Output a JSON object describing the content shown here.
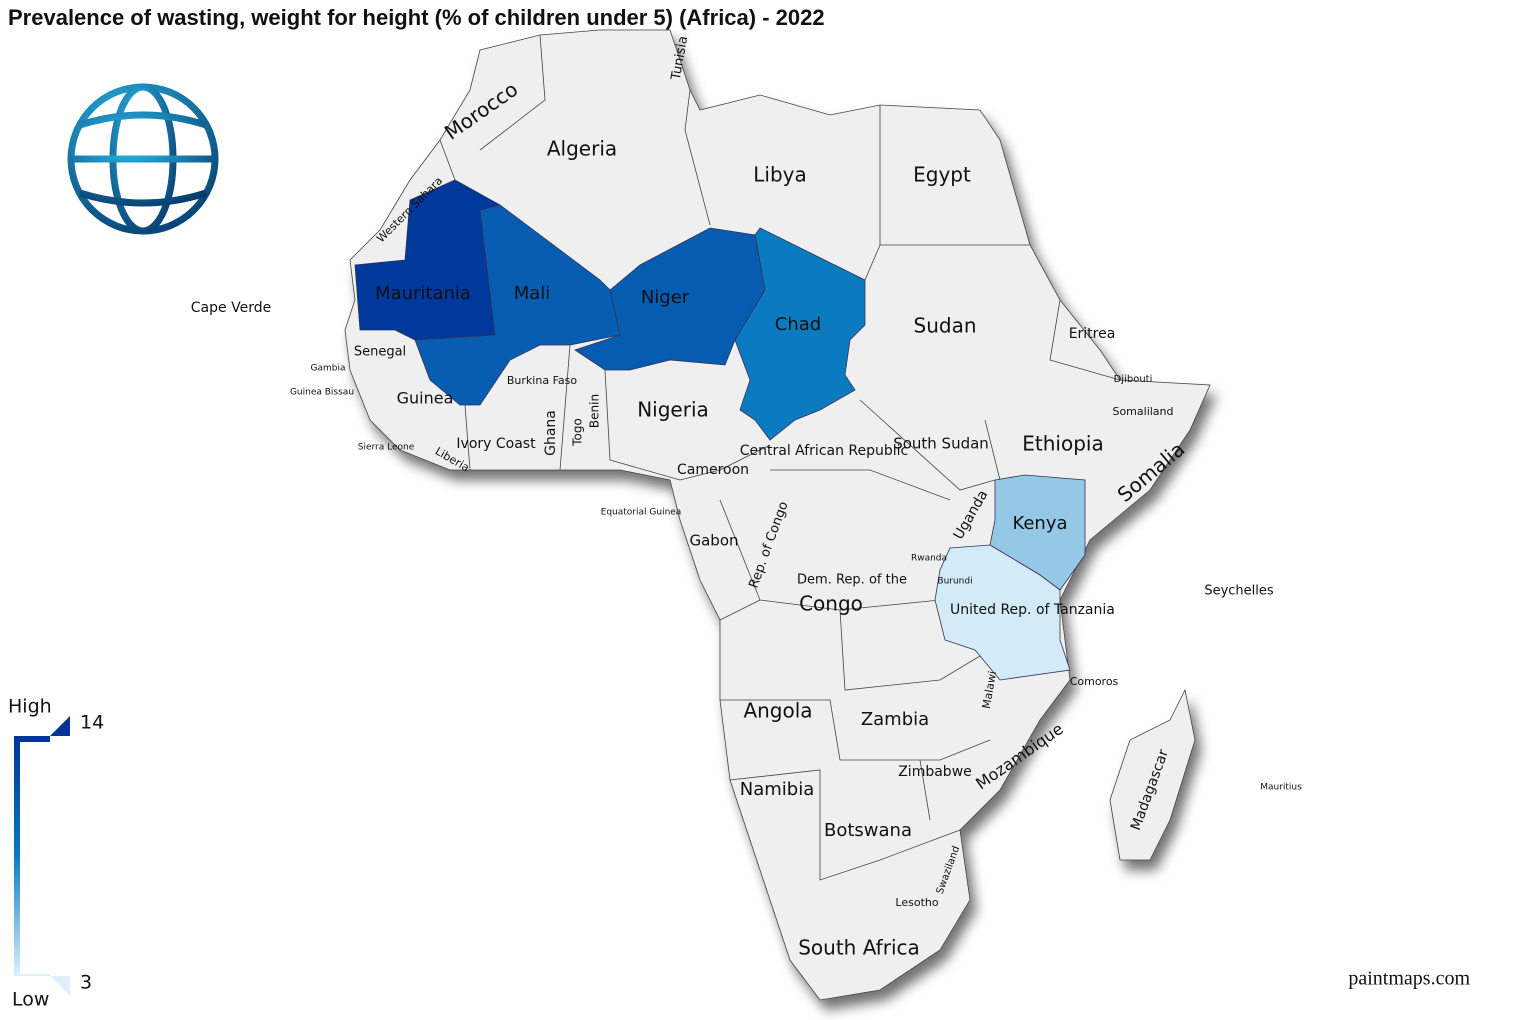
{
  "title": "Prevalence of wasting, weight for height (% of children under 5) (Africa) - 2022",
  "legend": {
    "high": "High",
    "low": "Low",
    "max": 14,
    "min": 3,
    "colors": [
      "#dff0fb",
      "#0a7cc2",
      "#003399"
    ]
  },
  "countries": [
    {
      "name": "Mauritania",
      "value": 13.6
    },
    {
      "name": "Mali",
      "value": 10.8
    },
    {
      "name": "Niger",
      "value": 10.9
    },
    {
      "name": "Chad",
      "value": 8.6
    },
    {
      "name": "Kenya",
      "value": 4.9
    },
    {
      "name": "United Rep. of Tanzania",
      "value": 3.3
    }
  ],
  "labels": [
    "Morocco",
    "Algeria",
    "Tunisia",
    "Libya",
    "Egypt",
    "Western Sahara",
    "Cape Verde",
    "Senegal",
    "Gambia",
    "Guinea Bissau",
    "Guinea",
    "Sierra Leone",
    "Liberia",
    "Ivory Coast",
    "Burkina Faso",
    "Ghana",
    "Togo",
    "Benin",
    "Nigeria",
    "Sudan",
    "Eritrea",
    "Djibouti",
    "Somaliland",
    "Ethiopia",
    "Somalia",
    "South Sudan",
    "Central African Republic",
    "Cameroon",
    "Equatorial Guinea",
    "Gabon",
    "Rep. of Congo",
    "Dem. Rep. of the",
    "Congo",
    "Uganda",
    "Rwanda",
    "Burundi",
    "Seychelles",
    "Comoros",
    "Malawi",
    "Angola",
    "Zambia",
    "Mozambique",
    "Madagascar",
    "Zimbabwe",
    "Namibia",
    "Botswana",
    "Swaziland",
    "Lesotho",
    "South Africa",
    "Mauritius"
  ],
  "credit": "paintmaps.com"
}
